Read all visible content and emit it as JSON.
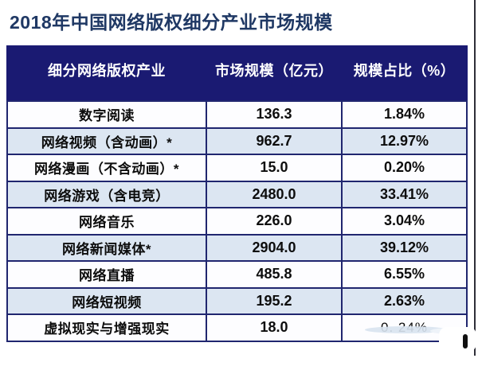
{
  "title": "2018年中国网络版权细分产业市场规模",
  "colors": {
    "title_color": "#1f3864",
    "header_bg": "#1a1a72",
    "border": "#20266f",
    "alt_row_bg": "#dce6f2",
    "row_bg": "#fdfdff",
    "header_text": "#ffffff",
    "cell_text": "#0d0d0d"
  },
  "chart_data": {
    "type": "table",
    "title": "2018年中国网络版权细分产业市场规模",
    "columns": [
      "细分网络版权产业",
      "市场规模（亿元）",
      "规模占比（%）"
    ],
    "categories": [
      "数字阅读",
      "网络视频（含动画）*",
      "网络漫画（不含动画）*",
      "网络游戏（含电竞）",
      "网络音乐",
      "网络新闻媒体*",
      "网络直播",
      "网络短视频",
      "虚拟现实与增强现实"
    ],
    "market_scale_billion_yuan": [
      136.3,
      962.7,
      15.0,
      2480.0,
      226.0,
      2904.0,
      485.8,
      195.2,
      18.0
    ],
    "share_percent": [
      1.84,
      12.97,
      0.2,
      33.41,
      3.04,
      39.12,
      6.55,
      2.63,
      0.24
    ]
  },
  "table": {
    "headers": {
      "industry": "细分网络版权产业",
      "scale": "市场规模（亿元）",
      "share": "规模占比（%）"
    },
    "rows": [
      {
        "industry": "数字阅读",
        "scale": "136.3",
        "share": "1.84%"
      },
      {
        "industry": "网络视频（含动画）*",
        "scale": "962.7",
        "share": "12.97%"
      },
      {
        "industry": "网络漫画（不含动画）*",
        "scale": "15.0",
        "share": "0.20%"
      },
      {
        "industry": "网络游戏（含电竞）",
        "scale": "2480.0",
        "share": "33.41%"
      },
      {
        "industry": "网络音乐",
        "scale": "226.0",
        "share": "3.04%"
      },
      {
        "industry": "网络新闻媒体*",
        "scale": "2904.0",
        "share": "39.12%"
      },
      {
        "industry": "网络直播",
        "scale": "485.8",
        "share": "6.55%"
      },
      {
        "industry": "网络短视频",
        "scale": "195.2",
        "share": "2.63%"
      },
      {
        "industry": "虚拟现实与增强现实",
        "scale": "18.0",
        "share": "0. 24%"
      }
    ]
  }
}
